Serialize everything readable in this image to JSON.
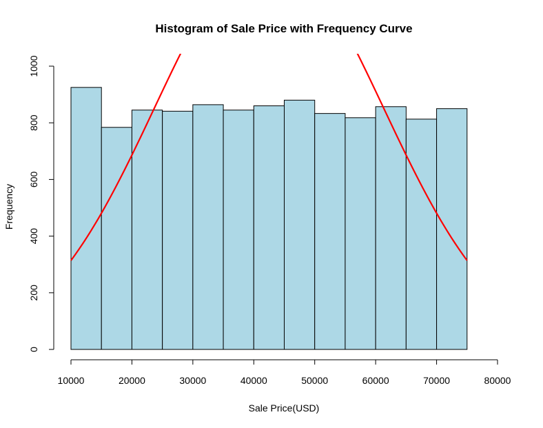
{
  "chart_data": {
    "type": "bar",
    "title": "Histogram of Sale Price with Frequency Curve",
    "xlabel": "Sale Price(USD)",
    "ylabel": "Frequency",
    "xlim": [
      10000,
      80000
    ],
    "ylim": [
      0,
      1000
    ],
    "x_ticks": [
      "10000",
      "20000",
      "30000",
      "40000",
      "50000",
      "60000",
      "70000",
      "80000"
    ],
    "y_ticks": [
      "0",
      "200",
      "400",
      "600",
      "800",
      "1000"
    ],
    "bins": [
      {
        "start": 10000,
        "end": 15000,
        "count": 925
      },
      {
        "start": 15000,
        "end": 20000,
        "count": 784
      },
      {
        "start": 20000,
        "end": 25000,
        "count": 845
      },
      {
        "start": 25000,
        "end": 30000,
        "count": 841
      },
      {
        "start": 30000,
        "end": 35000,
        "count": 864
      },
      {
        "start": 35000,
        "end": 40000,
        "count": 845
      },
      {
        "start": 40000,
        "end": 45000,
        "count": 860
      },
      {
        "start": 45000,
        "end": 50000,
        "count": 880
      },
      {
        "start": 50000,
        "end": 55000,
        "count": 833
      },
      {
        "start": 55000,
        "end": 60000,
        "count": 818
      },
      {
        "start": 60000,
        "end": 65000,
        "count": 857
      },
      {
        "start": 65000,
        "end": 70000,
        "count": 813
      },
      {
        "start": 70000,
        "end": 75000,
        "count": 850
      }
    ],
    "curve": {
      "type": "normal",
      "mean": 42500,
      "sd": 18760,
      "scale": 66250000,
      "x_range": [
        10000,
        75000
      ],
      "color": "#ff0000"
    },
    "bar_color": "#add8e6",
    "grid": false
  }
}
